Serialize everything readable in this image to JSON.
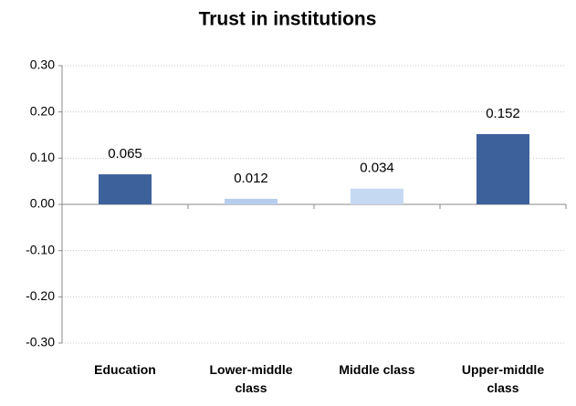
{
  "chart_data": {
    "type": "bar",
    "title": "Trust in institutions",
    "categories": [
      "Education",
      "Lower-middle class",
      "Middle class",
      "Upper-middle class"
    ],
    "values": [
      0.065,
      0.012,
      0.034,
      0.152
    ],
    "colors": [
      "#3d619b",
      "#b7cdee",
      "#c6d9f3",
      "#3d619b"
    ],
    "ylim": [
      -0.3,
      0.3
    ],
    "yticks": [
      {
        "value": -0.3,
        "label": "-0.30"
      },
      {
        "value": -0.2,
        "label": "-0.20"
      },
      {
        "value": -0.1,
        "label": "-0.10"
      },
      {
        "value": 0,
        "label": "0.00"
      },
      {
        "value": 0.1,
        "label": "0.10"
      },
      {
        "value": 0.2,
        "label": "0.20"
      },
      {
        "value": 0.3,
        "label": "0.30"
      }
    ],
    "grid": true
  }
}
